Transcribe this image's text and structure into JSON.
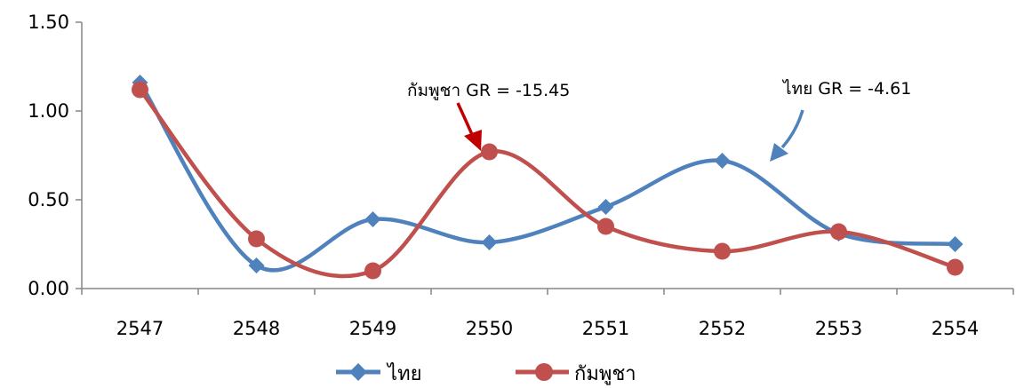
{
  "chart_data": {
    "type": "line",
    "categories": [
      "2547",
      "2548",
      "2549",
      "2550",
      "2551",
      "2552",
      "2553",
      "2554"
    ],
    "series": [
      {
        "name": "ไทย",
        "color": "#4f81bd",
        "marker": "diamond",
        "values": [
          1.16,
          0.13,
          0.39,
          0.26,
          0.46,
          0.72,
          0.31,
          0.25
        ]
      },
      {
        "name": "กัมพูชา",
        "color": "#c0504d",
        "marker": "circle",
        "values": [
          1.12,
          0.28,
          0.1,
          0.77,
          0.35,
          0.21,
          0.32,
          0.12
        ]
      }
    ],
    "ylim": [
      0,
      1.5
    ],
    "yticks": [
      "0.00",
      "0.50",
      "1.00",
      "1.50"
    ],
    "grid": false,
    "legend_position": "bottom",
    "smooth": true,
    "annotations": [
      {
        "text": "กัมพูชา GR = -15.45",
        "series": "กัมพูชา",
        "target_category": "2550"
      },
      {
        "text": "ไทย GR = -4.61",
        "series": "ไทย",
        "target_category": "2552"
      }
    ]
  }
}
